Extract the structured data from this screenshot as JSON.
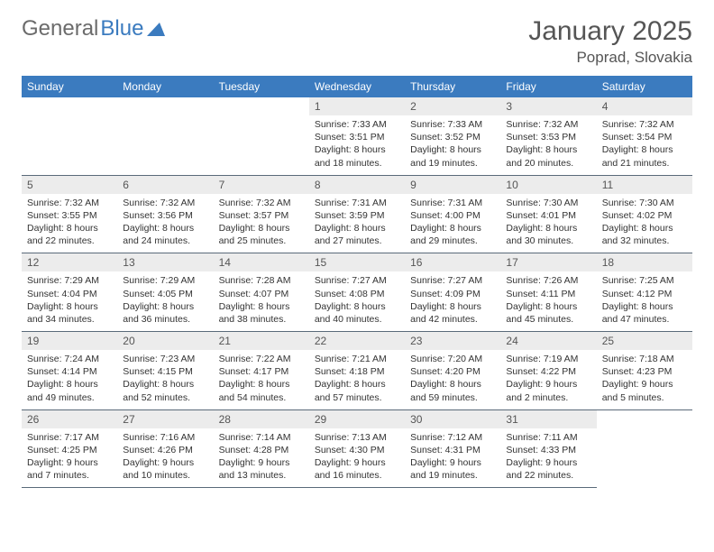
{
  "logo": {
    "text_gray": "General",
    "text_blue": "Blue"
  },
  "title": "January 2025",
  "location": "Poprad, Slovakia",
  "colors": {
    "header_bg": "#3b7bbf",
    "header_text": "#ffffff",
    "daynum_bg": "#ececec",
    "border": "#5a6a7a",
    "logo_gray": "#6b6b6b",
    "logo_blue": "#3b7bbf"
  },
  "weekdays": [
    "Sunday",
    "Monday",
    "Tuesday",
    "Wednesday",
    "Thursday",
    "Friday",
    "Saturday"
  ],
  "weeks": [
    [
      {
        "empty": true
      },
      {
        "empty": true
      },
      {
        "empty": true
      },
      {
        "day": "1",
        "sunrise": "Sunrise: 7:33 AM",
        "sunset": "Sunset: 3:51 PM",
        "dl1": "Daylight: 8 hours",
        "dl2": "and 18 minutes."
      },
      {
        "day": "2",
        "sunrise": "Sunrise: 7:33 AM",
        "sunset": "Sunset: 3:52 PM",
        "dl1": "Daylight: 8 hours",
        "dl2": "and 19 minutes."
      },
      {
        "day": "3",
        "sunrise": "Sunrise: 7:32 AM",
        "sunset": "Sunset: 3:53 PM",
        "dl1": "Daylight: 8 hours",
        "dl2": "and 20 minutes."
      },
      {
        "day": "4",
        "sunrise": "Sunrise: 7:32 AM",
        "sunset": "Sunset: 3:54 PM",
        "dl1": "Daylight: 8 hours",
        "dl2": "and 21 minutes."
      }
    ],
    [
      {
        "day": "5",
        "sunrise": "Sunrise: 7:32 AM",
        "sunset": "Sunset: 3:55 PM",
        "dl1": "Daylight: 8 hours",
        "dl2": "and 22 minutes."
      },
      {
        "day": "6",
        "sunrise": "Sunrise: 7:32 AM",
        "sunset": "Sunset: 3:56 PM",
        "dl1": "Daylight: 8 hours",
        "dl2": "and 24 minutes."
      },
      {
        "day": "7",
        "sunrise": "Sunrise: 7:32 AM",
        "sunset": "Sunset: 3:57 PM",
        "dl1": "Daylight: 8 hours",
        "dl2": "and 25 minutes."
      },
      {
        "day": "8",
        "sunrise": "Sunrise: 7:31 AM",
        "sunset": "Sunset: 3:59 PM",
        "dl1": "Daylight: 8 hours",
        "dl2": "and 27 minutes."
      },
      {
        "day": "9",
        "sunrise": "Sunrise: 7:31 AM",
        "sunset": "Sunset: 4:00 PM",
        "dl1": "Daylight: 8 hours",
        "dl2": "and 29 minutes."
      },
      {
        "day": "10",
        "sunrise": "Sunrise: 7:30 AM",
        "sunset": "Sunset: 4:01 PM",
        "dl1": "Daylight: 8 hours",
        "dl2": "and 30 minutes."
      },
      {
        "day": "11",
        "sunrise": "Sunrise: 7:30 AM",
        "sunset": "Sunset: 4:02 PM",
        "dl1": "Daylight: 8 hours",
        "dl2": "and 32 minutes."
      }
    ],
    [
      {
        "day": "12",
        "sunrise": "Sunrise: 7:29 AM",
        "sunset": "Sunset: 4:04 PM",
        "dl1": "Daylight: 8 hours",
        "dl2": "and 34 minutes."
      },
      {
        "day": "13",
        "sunrise": "Sunrise: 7:29 AM",
        "sunset": "Sunset: 4:05 PM",
        "dl1": "Daylight: 8 hours",
        "dl2": "and 36 minutes."
      },
      {
        "day": "14",
        "sunrise": "Sunrise: 7:28 AM",
        "sunset": "Sunset: 4:07 PM",
        "dl1": "Daylight: 8 hours",
        "dl2": "and 38 minutes."
      },
      {
        "day": "15",
        "sunrise": "Sunrise: 7:27 AM",
        "sunset": "Sunset: 4:08 PM",
        "dl1": "Daylight: 8 hours",
        "dl2": "and 40 minutes."
      },
      {
        "day": "16",
        "sunrise": "Sunrise: 7:27 AM",
        "sunset": "Sunset: 4:09 PM",
        "dl1": "Daylight: 8 hours",
        "dl2": "and 42 minutes."
      },
      {
        "day": "17",
        "sunrise": "Sunrise: 7:26 AM",
        "sunset": "Sunset: 4:11 PM",
        "dl1": "Daylight: 8 hours",
        "dl2": "and 45 minutes."
      },
      {
        "day": "18",
        "sunrise": "Sunrise: 7:25 AM",
        "sunset": "Sunset: 4:12 PM",
        "dl1": "Daylight: 8 hours",
        "dl2": "and 47 minutes."
      }
    ],
    [
      {
        "day": "19",
        "sunrise": "Sunrise: 7:24 AM",
        "sunset": "Sunset: 4:14 PM",
        "dl1": "Daylight: 8 hours",
        "dl2": "and 49 minutes."
      },
      {
        "day": "20",
        "sunrise": "Sunrise: 7:23 AM",
        "sunset": "Sunset: 4:15 PM",
        "dl1": "Daylight: 8 hours",
        "dl2": "and 52 minutes."
      },
      {
        "day": "21",
        "sunrise": "Sunrise: 7:22 AM",
        "sunset": "Sunset: 4:17 PM",
        "dl1": "Daylight: 8 hours",
        "dl2": "and 54 minutes."
      },
      {
        "day": "22",
        "sunrise": "Sunrise: 7:21 AM",
        "sunset": "Sunset: 4:18 PM",
        "dl1": "Daylight: 8 hours",
        "dl2": "and 57 minutes."
      },
      {
        "day": "23",
        "sunrise": "Sunrise: 7:20 AM",
        "sunset": "Sunset: 4:20 PM",
        "dl1": "Daylight: 8 hours",
        "dl2": "and 59 minutes."
      },
      {
        "day": "24",
        "sunrise": "Sunrise: 7:19 AM",
        "sunset": "Sunset: 4:22 PM",
        "dl1": "Daylight: 9 hours",
        "dl2": "and 2 minutes."
      },
      {
        "day": "25",
        "sunrise": "Sunrise: 7:18 AM",
        "sunset": "Sunset: 4:23 PM",
        "dl1": "Daylight: 9 hours",
        "dl2": "and 5 minutes."
      }
    ],
    [
      {
        "day": "26",
        "sunrise": "Sunrise: 7:17 AM",
        "sunset": "Sunset: 4:25 PM",
        "dl1": "Daylight: 9 hours",
        "dl2": "and 7 minutes."
      },
      {
        "day": "27",
        "sunrise": "Sunrise: 7:16 AM",
        "sunset": "Sunset: 4:26 PM",
        "dl1": "Daylight: 9 hours",
        "dl2": "and 10 minutes."
      },
      {
        "day": "28",
        "sunrise": "Sunrise: 7:14 AM",
        "sunset": "Sunset: 4:28 PM",
        "dl1": "Daylight: 9 hours",
        "dl2": "and 13 minutes."
      },
      {
        "day": "29",
        "sunrise": "Sunrise: 7:13 AM",
        "sunset": "Sunset: 4:30 PM",
        "dl1": "Daylight: 9 hours",
        "dl2": "and 16 minutes."
      },
      {
        "day": "30",
        "sunrise": "Sunrise: 7:12 AM",
        "sunset": "Sunset: 4:31 PM",
        "dl1": "Daylight: 9 hours",
        "dl2": "and 19 minutes."
      },
      {
        "day": "31",
        "sunrise": "Sunrise: 7:11 AM",
        "sunset": "Sunset: 4:33 PM",
        "dl1": "Daylight: 9 hours",
        "dl2": "and 22 minutes."
      },
      {
        "empty": true,
        "trailing": true
      }
    ]
  ]
}
